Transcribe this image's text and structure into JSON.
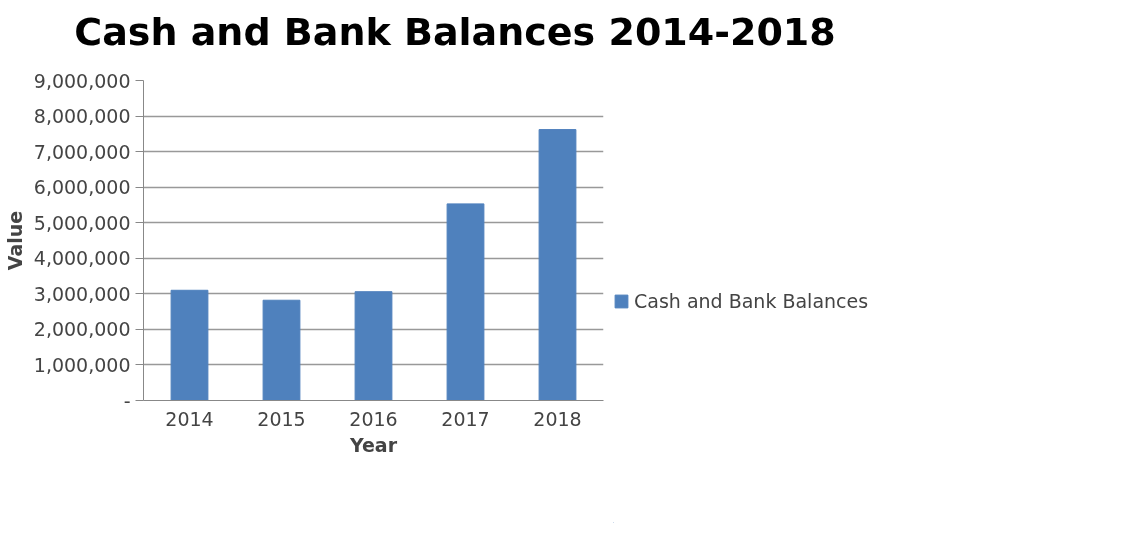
{
  "chart_data": {
    "type": "bar",
    "title": "Cash and Bank Balances 2014-2018",
    "xlabel": "Year",
    "ylabel": "Value",
    "categories": [
      "2014",
      "2015",
      "2016",
      "2017",
      "2018"
    ],
    "series": [
      {
        "name": "Cash and Bank Balances",
        "color": "#4f81bd",
        "values": [
          3100000,
          2820000,
          3060000,
          5530000,
          7620000
        ]
      }
    ],
    "ylim": [
      0,
      9000000
    ],
    "yticks": [
      {
        "value": 0,
        "label": "-"
      },
      {
        "value": 1000000,
        "label": "1,000,000"
      },
      {
        "value": 2000000,
        "label": "2,000,000"
      },
      {
        "value": 3000000,
        "label": "3,000,000"
      },
      {
        "value": 4000000,
        "label": "4,000,000"
      },
      {
        "value": 5000000,
        "label": "5,000,000"
      },
      {
        "value": 6000000,
        "label": "6,000,000"
      },
      {
        "value": 7000000,
        "label": "7,000,000"
      },
      {
        "value": 8000000,
        "label": "8,000,000"
      },
      {
        "value": 9000000,
        "label": "9,000,000"
      }
    ],
    "grid": "y",
    "legend": "right"
  }
}
